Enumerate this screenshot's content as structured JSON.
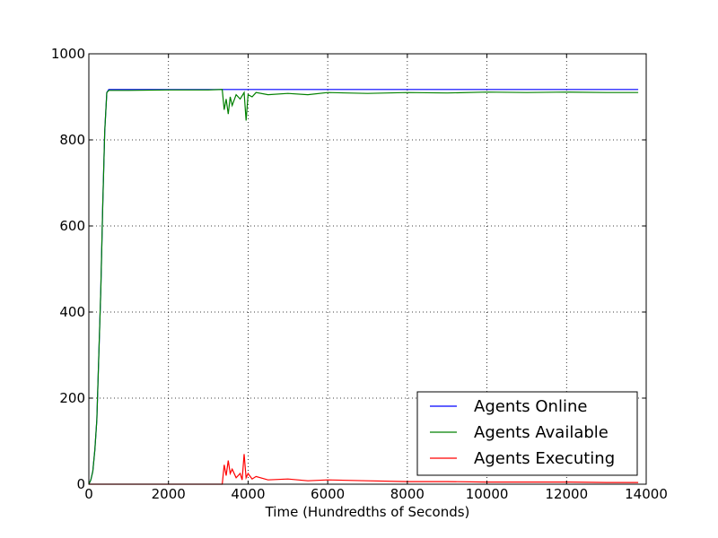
{
  "chart_data": {
    "type": "line",
    "title": "",
    "xlabel": "Time (Hundredths of Seconds)",
    "ylabel": "",
    "xlim": [
      0,
      14000
    ],
    "ylim": [
      0,
      1000
    ],
    "xticks": [
      0,
      2000,
      4000,
      6000,
      8000,
      10000,
      12000,
      14000
    ],
    "yticks": [
      0,
      200,
      400,
      600,
      800,
      1000
    ],
    "grid": true,
    "legend_position": "lower right",
    "series": [
      {
        "name": "Agents Online",
        "color": "#0000ff",
        "x": [
          0,
          50,
          100,
          150,
          200,
          250,
          300,
          350,
          400,
          450,
          500,
          1000,
          2000,
          3000,
          3400,
          4000,
          6000,
          8000,
          10000,
          12000,
          13800
        ],
        "y": [
          0,
          10,
          30,
          80,
          150,
          300,
          450,
          650,
          820,
          910,
          917,
          917,
          917,
          917,
          917,
          917,
          917,
          917,
          917,
          917,
          917
        ]
      },
      {
        "name": "Agents Available",
        "color": "#008000",
        "x": [
          0,
          50,
          100,
          150,
          200,
          250,
          300,
          350,
          400,
          450,
          500,
          1000,
          2000,
          3000,
          3350,
          3400,
          3450,
          3500,
          3550,
          3600,
          3700,
          3800,
          3900,
          3950,
          4000,
          4100,
          4200,
          4500,
          5000,
          5500,
          6000,
          7000,
          8000,
          9000,
          10000,
          11000,
          12000,
          13000,
          13800
        ],
        "y": [
          0,
          10,
          30,
          80,
          150,
          300,
          450,
          650,
          820,
          910,
          915,
          915,
          916,
          916,
          917,
          870,
          895,
          860,
          900,
          880,
          905,
          895,
          910,
          845,
          905,
          900,
          910,
          905,
          908,
          905,
          910,
          908,
          910,
          909,
          911,
          910,
          911,
          910,
          910
        ]
      },
      {
        "name": "Agents Executing",
        "color": "#ff0000",
        "x": [
          0,
          1000,
          2000,
          3000,
          3350,
          3400,
          3450,
          3500,
          3550,
          3600,
          3700,
          3800,
          3850,
          3900,
          3950,
          4000,
          4100,
          4200,
          4500,
          5000,
          5500,
          6000,
          7000,
          8000,
          9000,
          10000,
          11000,
          12000,
          13000,
          13800
        ],
        "y": [
          0,
          0,
          0,
          0,
          0,
          45,
          20,
          55,
          25,
          35,
          15,
          25,
          10,
          70,
          15,
          25,
          12,
          18,
          10,
          12,
          8,
          10,
          8,
          6,
          6,
          5,
          5,
          5,
          4,
          4
        ]
      }
    ]
  }
}
